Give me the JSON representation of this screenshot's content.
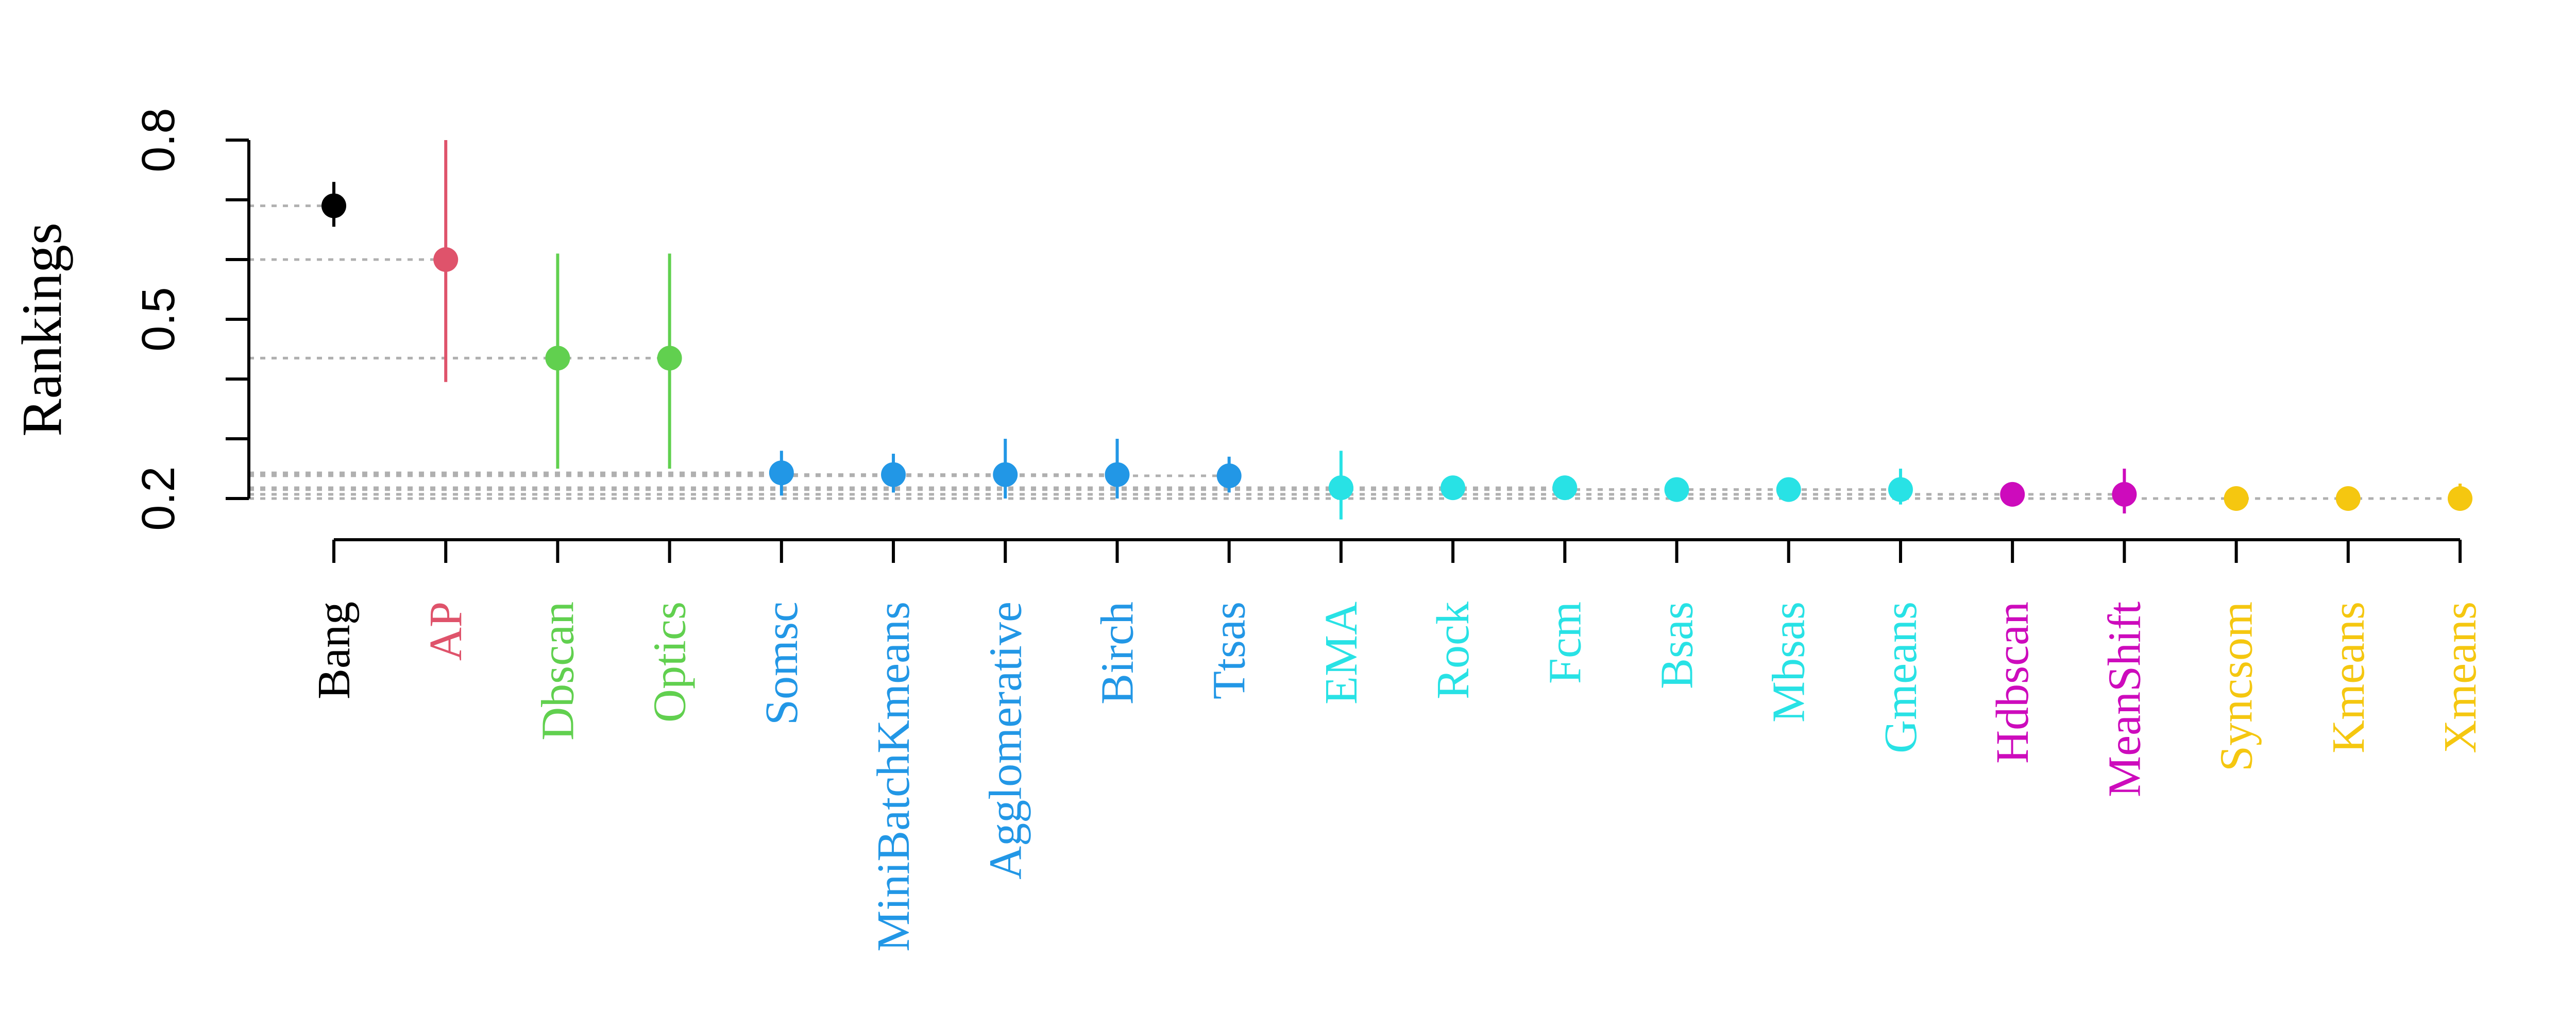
{
  "chart_data": {
    "type": "scatter",
    "ylabel": "Rankings",
    "yticks": [
      "0.2",
      "0.5",
      "0.8"
    ],
    "ylim": [
      0.2,
      0.8
    ],
    "grid": false,
    "reference_lines": "dotted horizontal line from the y-axis to each point",
    "categories": [
      "Bang",
      "AP",
      "Dbscan",
      "Optics",
      "Somsc",
      "MiniBatchKmeans",
      "Agglomerative",
      "Birch",
      "Ttsas",
      "EMA",
      "Rock",
      "Fcm",
      "Bsas",
      "Mbsas",
      "Gmeans",
      "Hdbscan",
      "MeanShift",
      "Syncsom",
      "Kmeans",
      "Xmeans"
    ],
    "groups": [
      0,
      1,
      2,
      2,
      3,
      3,
      3,
      3,
      3,
      4,
      4,
      4,
      4,
      4,
      4,
      5,
      5,
      6,
      6,
      6
    ],
    "group_colors": [
      "#000000",
      "#DF536B",
      "#61D04F",
      "#61D04F",
      "#2297E6",
      "#2297E6",
      "#2297E6",
      "#2297E6",
      "#2297E6",
      "#28E2E5",
      "#28E2E5",
      "#28E2E5",
      "#28E2E5",
      "#28E2E5",
      "#28E2E5",
      "#CD0BBC",
      "#CD0BBC",
      "#F5C710",
      "#F5C710",
      "#F5C710"
    ],
    "values": [
      0.69,
      0.6,
      0.435,
      0.435,
      0.243,
      0.24,
      0.24,
      0.24,
      0.238,
      0.218,
      0.218,
      0.218,
      0.215,
      0.215,
      0.215,
      0.207,
      0.207,
      0.2,
      0.2,
      0.2
    ],
    "lower": [
      0.655,
      0.395,
      0.25,
      0.25,
      0.205,
      0.21,
      0.2,
      0.2,
      0.21,
      0.165,
      0.2,
      0.205,
      0.205,
      0.205,
      0.19,
      0.192,
      0.175,
      0.195,
      0.185,
      0.185
    ],
    "upper": [
      0.73,
      0.8,
      0.61,
      0.61,
      0.28,
      0.275,
      0.3,
      0.3,
      0.27,
      0.28,
      0.235,
      0.23,
      0.225,
      0.225,
      0.25,
      0.22,
      0.25,
      0.205,
      0.22,
      0.225
    ]
  }
}
